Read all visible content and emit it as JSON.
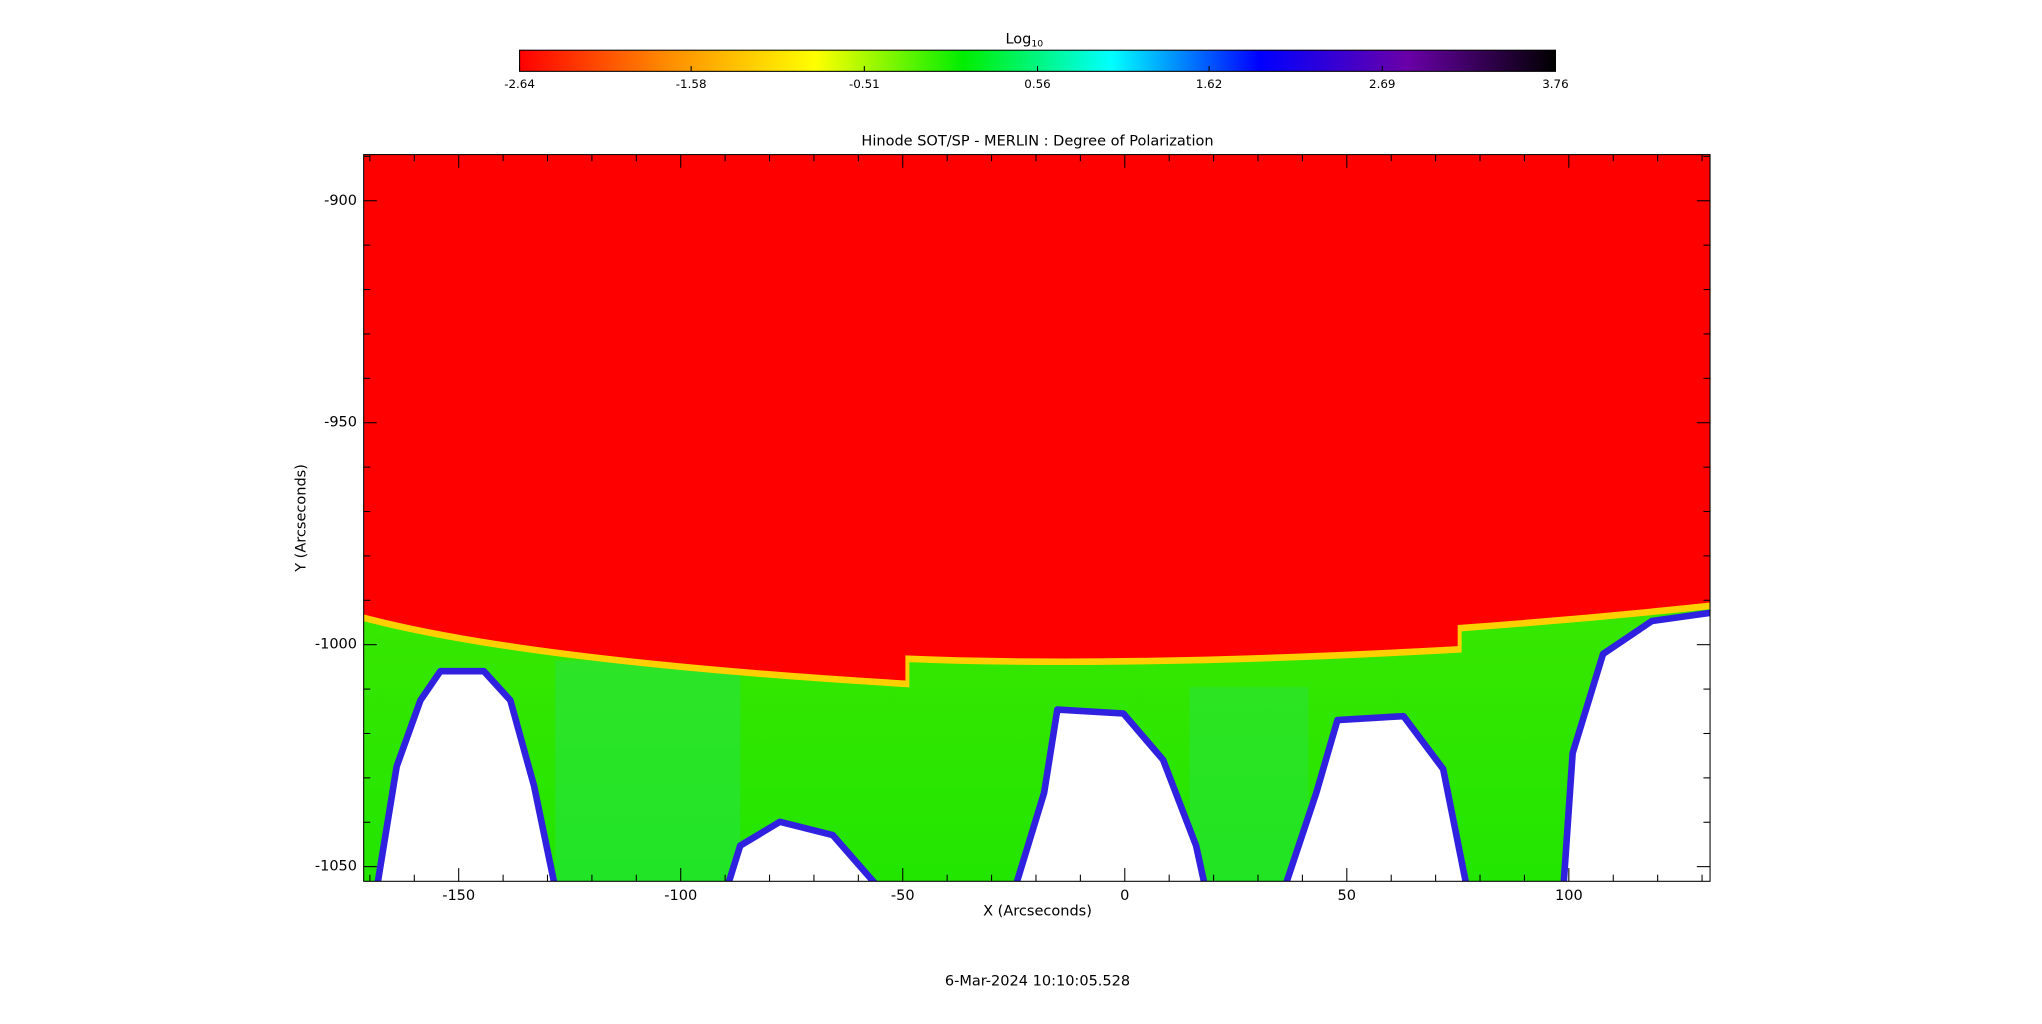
{
  "chart_data": {
    "type": "image",
    "title": "Hinode SOT/SP - MERLIN : Degree of Polarization",
    "xlabel": "X (Arcseconds)",
    "ylabel": "Y (Arcseconds)",
    "footer": "6-Mar-2024 10:10:05.528",
    "xlim": [
      -171.4,
      131.8
    ],
    "ylim": [
      -1053.3,
      -889.6
    ],
    "xticks": [
      -150,
      -100,
      -50,
      0,
      50,
      100
    ],
    "yticks": [
      -900,
      -950,
      -1000,
      -1050
    ],
    "xminorticks": [
      -170,
      -160,
      -140,
      -130,
      -120,
      -110,
      -90,
      -80,
      -70,
      -60,
      -40,
      -30,
      -20,
      -10,
      10,
      20,
      30,
      40,
      60,
      70,
      80,
      90,
      110,
      120,
      130
    ],
    "yminorticks": [
      -890,
      -910,
      -920,
      -930,
      -940,
      -960,
      -970,
      -980,
      -990,
      -1010,
      -1020,
      -1030,
      -1040
    ],
    "colorbar": {
      "label": "Log",
      "label_sub": "10",
      "lim": [
        -2.64,
        3.76
      ],
      "ticks": [
        -2.64,
        -1.58,
        -0.51,
        0.56,
        1.62,
        2.69,
        3.76
      ],
      "colors": [
        "#ff0000",
        "#ff8c00",
        "#ffff00",
        "#00ee00",
        "#00ffff",
        "#0000ff",
        "#6a00a8",
        "#000000"
      ]
    }
  }
}
